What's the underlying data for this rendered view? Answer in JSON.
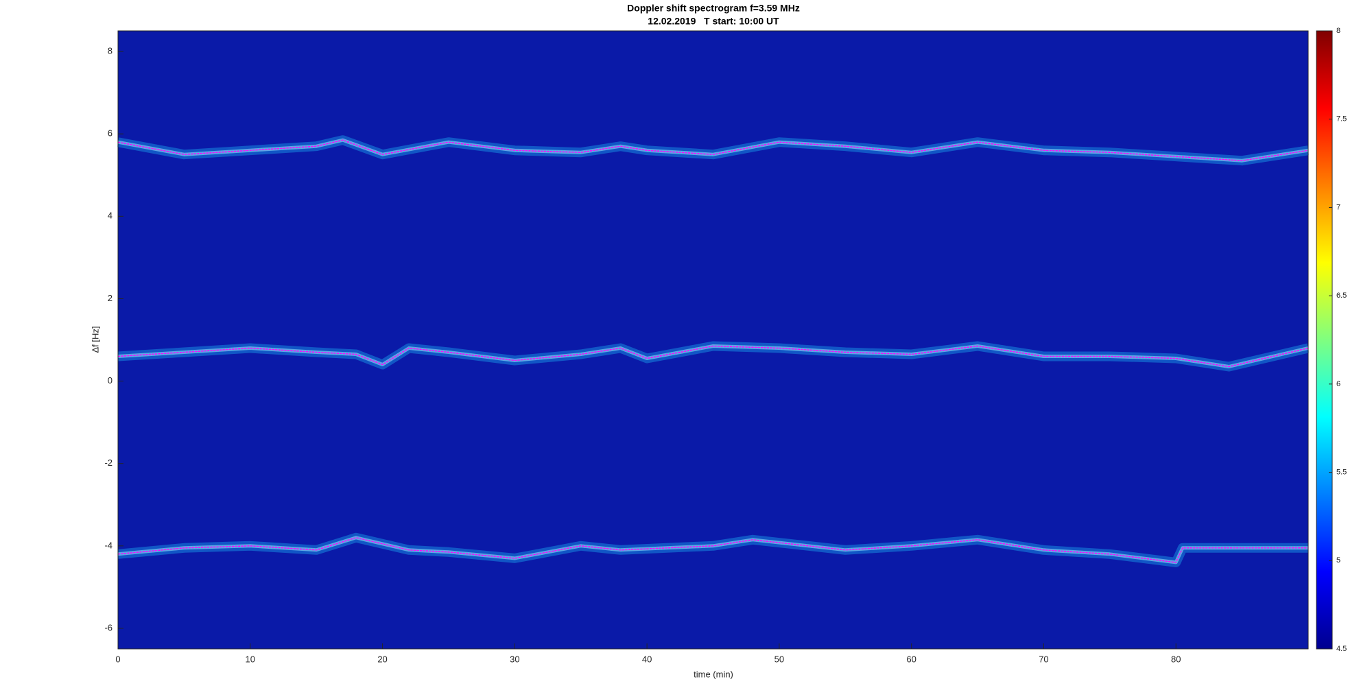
{
  "chart_data": {
    "type": "spectrogram",
    "title": "Doppler shift spectrogram f=3.59 MHz",
    "subtitle": "12.02.2019   T start: 10:00 UT",
    "xlabel": "time (min)",
    "ylabel": "Δf [Hz]",
    "xlim": [
      0,
      90
    ],
    "xticks": [
      0,
      10,
      20,
      30,
      40,
      50,
      60,
      70,
      80
    ],
    "ylim": [
      -6.5,
      8.5
    ],
    "yticks": [
      -6,
      -4,
      -2,
      0,
      2,
      4,
      6,
      8
    ],
    "colormap": "jet",
    "clim": [
      4.5,
      8
    ],
    "cticks": [
      4.5,
      5,
      5.5,
      6,
      6.5,
      7,
      7.5,
      8
    ],
    "series": [
      {
        "color": "#ff00ff",
        "x": [
          0,
          5,
          10,
          15,
          17,
          20,
          25,
          30,
          35,
          38,
          40,
          45,
          50,
          55,
          60,
          65,
          70,
          75,
          80,
          85,
          90
        ],
        "values": [
          5.8,
          5.5,
          5.6,
          5.7,
          5.85,
          5.5,
          5.8,
          5.6,
          5.55,
          5.7,
          5.6,
          5.5,
          5.8,
          5.7,
          5.55,
          5.8,
          5.6,
          5.55,
          5.45,
          5.35,
          5.6
        ]
      },
      {
        "color": "#ff00ff",
        "x": [
          0,
          5,
          10,
          15,
          18,
          20,
          22,
          25,
          30,
          35,
          38,
          40,
          45,
          50,
          55,
          60,
          65,
          70,
          75,
          80,
          84,
          90
        ],
        "values": [
          0.6,
          0.7,
          0.8,
          0.7,
          0.65,
          0.4,
          0.8,
          0.7,
          0.5,
          0.65,
          0.8,
          0.55,
          0.85,
          0.8,
          0.7,
          0.65,
          0.85,
          0.6,
          0.6,
          0.55,
          0.35,
          0.8
        ]
      },
      {
        "color": "#ff00ff",
        "x": [
          0,
          5,
          10,
          15,
          18,
          22,
          25,
          30,
          35,
          38,
          45,
          48,
          55,
          60,
          65,
          70,
          75,
          80,
          80.5,
          90
        ],
        "values": [
          -4.2,
          -4.05,
          -4.0,
          -4.1,
          -3.8,
          -4.1,
          -4.15,
          -4.3,
          -4.0,
          -4.1,
          -4.0,
          -3.85,
          -4.1,
          -4.0,
          -3.85,
          -4.1,
          -4.2,
          -4.4,
          -4.05,
          -4.05
        ]
      }
    ]
  }
}
